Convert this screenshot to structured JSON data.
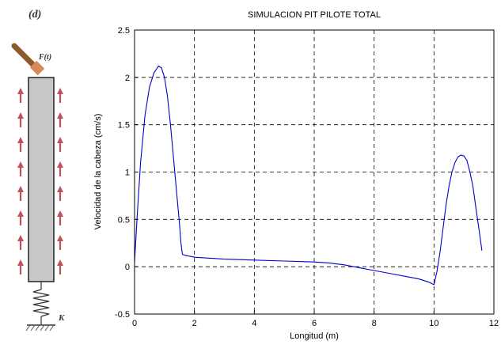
{
  "diagram": {
    "panel_label": "(d)",
    "force_label": "F(t)",
    "spring_label": "K",
    "colors": {
      "pile_fill": "#c8c8c8",
      "arrows": "#c0505a",
      "hammer": "#c87850",
      "spring": "#444444"
    }
  },
  "chart_data": {
    "type": "line",
    "title": "SIMULACION PIT PILOTE TOTAL",
    "xlabel": "Longitud (m)",
    "ylabel": "Velocidad de la cabeza (cm/s)",
    "xlim": [
      0,
      12
    ],
    "ylim": [
      -0.5,
      2.5
    ],
    "xticks": [
      "0",
      "2",
      "4",
      "6",
      "8",
      "10",
      "12"
    ],
    "yticks": [
      "-0.5",
      "0",
      "0.5",
      "1",
      "1.5",
      "2",
      "2.5"
    ],
    "xtick_values": [
      0,
      2,
      4,
      6,
      8,
      10,
      12
    ],
    "ytick_values": [
      -0.5,
      0,
      0.5,
      1,
      1.5,
      2,
      2.5
    ],
    "grid": true,
    "grid_style": "dashed",
    "line_color": "#0000cc",
    "series": [
      {
        "x": [
          0,
          0.1,
          0.2,
          0.35,
          0.5,
          0.65,
          0.8,
          0.9,
          1.0,
          1.1,
          1.2,
          1.3,
          1.4,
          1.5,
          1.55,
          1.6,
          1.7,
          2.0,
          3.0,
          4.0,
          5.0,
          6.0,
          6.5,
          7.0,
          7.5,
          8.0,
          8.5,
          9.0,
          9.5,
          9.8,
          10.0,
          10.1,
          10.2,
          10.3,
          10.4,
          10.5,
          10.6,
          10.7,
          10.8,
          10.9,
          11.0,
          11.1,
          11.2,
          11.3,
          11.4,
          11.5,
          11.6
        ],
        "y": [
          0.05,
          0.6,
          1.1,
          1.6,
          1.9,
          2.05,
          2.12,
          2.1,
          2.0,
          1.8,
          1.5,
          1.15,
          0.8,
          0.45,
          0.25,
          0.13,
          0.12,
          0.1,
          0.08,
          0.07,
          0.06,
          0.05,
          0.04,
          0.02,
          -0.01,
          -0.04,
          -0.07,
          -0.1,
          -0.13,
          -0.16,
          -0.19,
          -0.05,
          0.15,
          0.4,
          0.65,
          0.85,
          1.0,
          1.1,
          1.16,
          1.18,
          1.17,
          1.12,
          1.0,
          0.85,
          0.62,
          0.4,
          0.17
        ]
      }
    ]
  }
}
